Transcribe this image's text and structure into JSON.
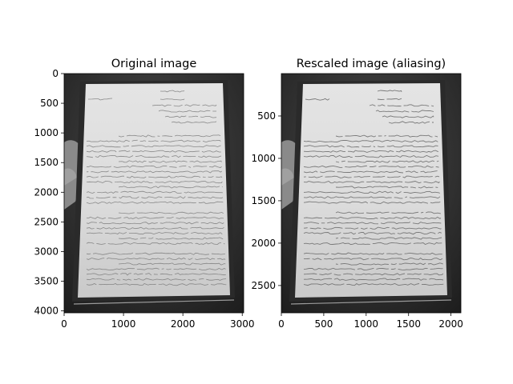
{
  "figure": {
    "background": "#ffffff"
  },
  "chart_data": [
    {
      "type": "image",
      "title": "Original image",
      "xlim": [
        0,
        3024
      ],
      "ylim": [
        4032,
        0
      ],
      "x_ticks": [
        {
          "value": 0,
          "label": "0"
        },
        {
          "value": 1000,
          "label": "1000"
        },
        {
          "value": 2000,
          "label": "2000"
        },
        {
          "value": 3000,
          "label": "3000"
        }
      ],
      "y_ticks": [
        {
          "value": 0,
          "label": "0"
        },
        {
          "value": 500,
          "label": "500"
        },
        {
          "value": 1000,
          "label": "1000"
        },
        {
          "value": 1500,
          "label": "1500"
        },
        {
          "value": 2000,
          "label": "2000"
        },
        {
          "value": 2500,
          "label": "2500"
        },
        {
          "value": 3000,
          "label": "3000"
        },
        {
          "value": 3500,
          "label": "3500"
        },
        {
          "value": 4000,
          "label": "4000"
        }
      ],
      "content": "grayscale photo of a handwritten page held in a hand"
    },
    {
      "type": "image",
      "title": "Rescaled image (aliasing)",
      "xlim": [
        0,
        2117
      ],
      "ylim": [
        2822,
        0
      ],
      "x_ticks": [
        {
          "value": 0,
          "label": "0"
        },
        {
          "value": 500,
          "label": "500"
        },
        {
          "value": 1000,
          "label": "1000"
        },
        {
          "value": 1500,
          "label": "1500"
        },
        {
          "value": 2000,
          "label": "2000"
        }
      ],
      "y_ticks": [
        {
          "value": 500,
          "label": "500"
        },
        {
          "value": 1000,
          "label": "1000"
        },
        {
          "value": 1500,
          "label": "1500"
        },
        {
          "value": 2000,
          "label": "2000"
        },
        {
          "value": 2500,
          "label": "2500"
        }
      ],
      "content": "same photo downscaled without anti-aliasing"
    }
  ]
}
